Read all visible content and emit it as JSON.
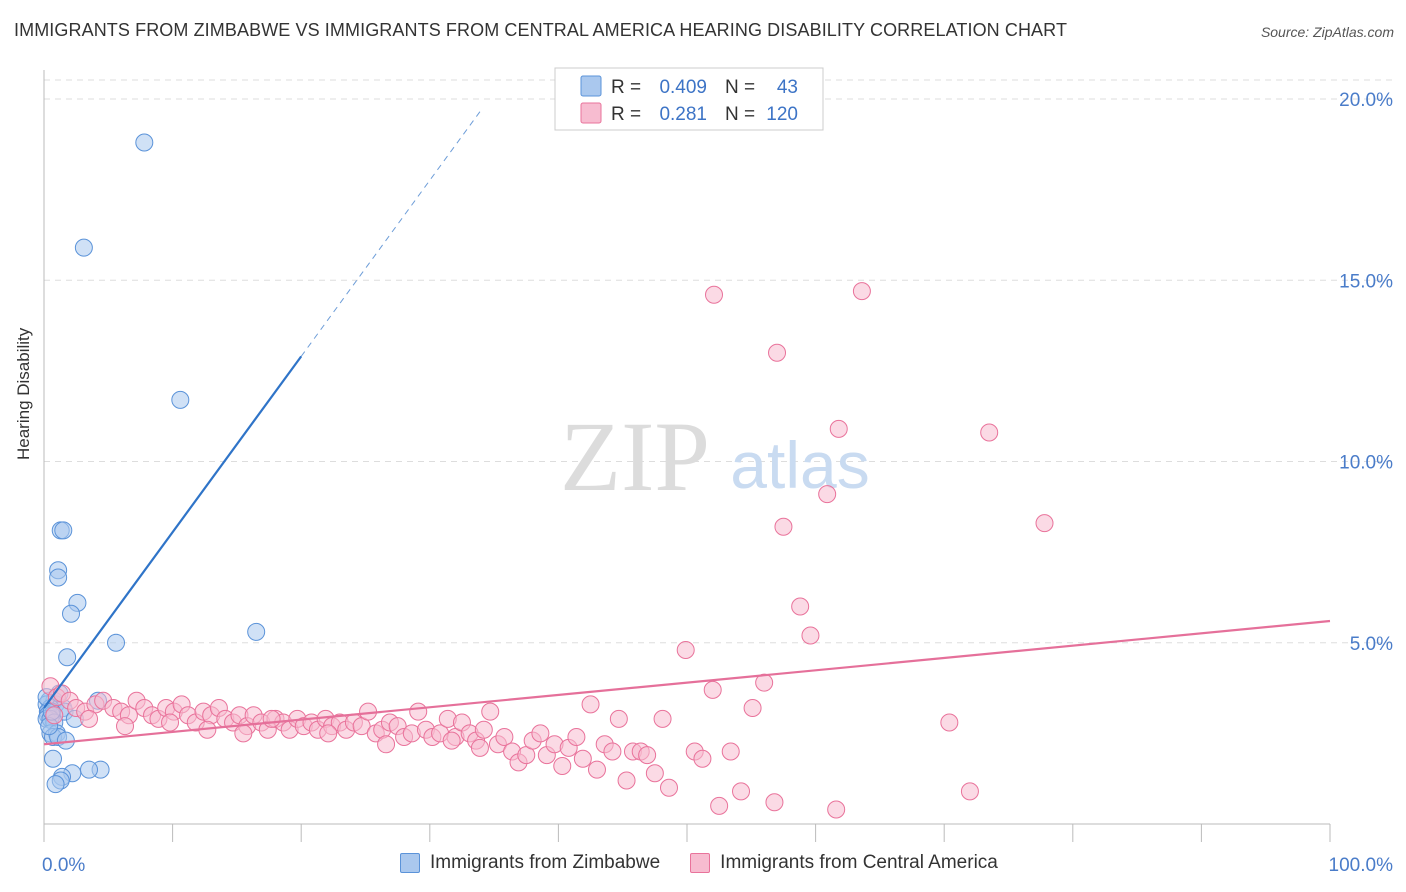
{
  "title": "IMMIGRANTS FROM ZIMBABWE VS IMMIGRANTS FROM CENTRAL AMERICA HEARING DISABILITY CORRELATION CHART",
  "source": "Source: ZipAtlas.com",
  "watermark": {
    "zip": "ZIP",
    "atlas": "atlas"
  },
  "colors": {
    "blue": "#5b93d9",
    "blue_fill": "#aac8ee",
    "blue_line": "#2f74c8",
    "pink": "#e9739b",
    "pink_fill": "#f7bcd0",
    "pink_line": "#e5709a",
    "axis_text": "#4a7cc9",
    "grid": "#dddddd"
  },
  "legend_box": [
    {
      "r_label": "R =",
      "r_value": "0.409",
      "n_label": "N =",
      "n_value": "43"
    },
    {
      "r_label": "R =",
      "r_value": "0.281",
      "n_label": "N =",
      "n_value": "120"
    }
  ],
  "chart_data": {
    "type": "scatter",
    "title": "IMMIGRANTS FROM ZIMBABWE VS IMMIGRANTS FROM CENTRAL AMERICA HEARING DISABILITY CORRELATION CHART",
    "xlabel": "",
    "ylabel": "Hearing Disability",
    "xlim": [
      0,
      100
    ],
    "ylim": [
      0,
      20.8
    ],
    "x_tick_labels": [
      {
        "value": 0,
        "label": "0.0%"
      },
      {
        "value": 100,
        "label": "100.0%"
      }
    ],
    "y_tick_labels": [
      {
        "value": 5,
        "label": "5.0%"
      },
      {
        "value": 10,
        "label": "10.0%"
      },
      {
        "value": 15,
        "label": "15.0%"
      },
      {
        "value": 20,
        "label": "20.0%"
      }
    ],
    "grid": true,
    "series": [
      {
        "name": "Immigrants from Zimbabwe",
        "color": "#5b93d9",
        "R": 0.409,
        "N": 43,
        "trend": {
          "x0": 0,
          "y0": 3.2,
          "x1": 20,
          "y1": 12.9,
          "dash_to_x": 34,
          "dash_to_y": 19.7
        },
        "points": [
          [
            7.8,
            18.8
          ],
          [
            3.1,
            15.9
          ],
          [
            10.6,
            11.7
          ],
          [
            1.3,
            8.1
          ],
          [
            1.5,
            8.1
          ],
          [
            1.1,
            7.0
          ],
          [
            1.1,
            6.8
          ],
          [
            2.6,
            6.1
          ],
          [
            2.1,
            5.8
          ],
          [
            5.6,
            5.0
          ],
          [
            16.5,
            5.3
          ],
          [
            1.8,
            4.6
          ],
          [
            4.2,
            3.4
          ],
          [
            0.4,
            3.4
          ],
          [
            0.8,
            3.4
          ],
          [
            0.2,
            3.3
          ],
          [
            0.9,
            3.3
          ],
          [
            1.5,
            3.2
          ],
          [
            0.5,
            3.2
          ],
          [
            0.3,
            3.1
          ],
          [
            1.6,
            3.1
          ],
          [
            0.3,
            3.0
          ],
          [
            0.6,
            3.0
          ],
          [
            2.4,
            2.9
          ],
          [
            0.2,
            2.9
          ],
          [
            0.5,
            2.9
          ],
          [
            0.8,
            2.8
          ],
          [
            0.5,
            2.5
          ],
          [
            1.0,
            2.5
          ],
          [
            0.7,
            2.4
          ],
          [
            1.1,
            2.4
          ],
          [
            1.7,
            2.3
          ],
          [
            0.7,
            1.8
          ],
          [
            4.4,
            1.5
          ],
          [
            3.5,
            1.5
          ],
          [
            2.2,
            1.4
          ],
          [
            1.4,
            1.3
          ],
          [
            1.3,
            1.2
          ],
          [
            0.9,
            1.1
          ],
          [
            0.2,
            3.5
          ],
          [
            0.4,
            2.7
          ],
          [
            1.2,
            3.6
          ],
          [
            0.6,
            3.1
          ]
        ]
      },
      {
        "name": "Immigrants from Central America",
        "color": "#e9739b",
        "R": 0.281,
        "N": 120,
        "trend": {
          "x0": 0,
          "y0": 2.2,
          "x1": 100,
          "y1": 5.6
        },
        "points": [
          [
            0.5,
            3.8
          ],
          [
            1.0,
            3.5
          ],
          [
            1.4,
            3.6
          ],
          [
            2.0,
            3.4
          ],
          [
            2.5,
            3.2
          ],
          [
            0.8,
            3.0
          ],
          [
            3.2,
            3.1
          ],
          [
            4.0,
            3.3
          ],
          [
            4.6,
            3.4
          ],
          [
            5.4,
            3.2
          ],
          [
            6.0,
            3.1
          ],
          [
            6.6,
            3.0
          ],
          [
            7.2,
            3.4
          ],
          [
            7.8,
            3.2
          ],
          [
            8.4,
            3.0
          ],
          [
            8.9,
            2.9
          ],
          [
            9.5,
            3.2
          ],
          [
            10.1,
            3.1
          ],
          [
            10.7,
            3.3
          ],
          [
            11.2,
            3.0
          ],
          [
            11.8,
            2.8
          ],
          [
            12.4,
            3.1
          ],
          [
            13.0,
            3.0
          ],
          [
            13.6,
            3.2
          ],
          [
            14.1,
            2.9
          ],
          [
            14.7,
            2.8
          ],
          [
            15.2,
            3.0
          ],
          [
            15.8,
            2.7
          ],
          [
            16.3,
            3.0
          ],
          [
            16.9,
            2.8
          ],
          [
            17.4,
            2.6
          ],
          [
            18.0,
            2.9
          ],
          [
            18.6,
            2.8
          ],
          [
            19.1,
            2.6
          ],
          [
            19.7,
            2.9
          ],
          [
            20.2,
            2.7
          ],
          [
            20.8,
            2.8
          ],
          [
            21.3,
            2.6
          ],
          [
            21.9,
            2.9
          ],
          [
            22.4,
            2.7
          ],
          [
            23.0,
            2.8
          ],
          [
            23.5,
            2.6
          ],
          [
            24.1,
            2.8
          ],
          [
            24.7,
            2.7
          ],
          [
            25.2,
            3.1
          ],
          [
            25.8,
            2.5
          ],
          [
            26.3,
            2.6
          ],
          [
            26.9,
            2.8
          ],
          [
            27.5,
            2.7
          ],
          [
            28.0,
            2.4
          ],
          [
            28.6,
            2.5
          ],
          [
            29.1,
            3.1
          ],
          [
            29.7,
            2.6
          ],
          [
            30.2,
            2.4
          ],
          [
            30.8,
            2.5
          ],
          [
            31.4,
            2.9
          ],
          [
            32.0,
            2.4
          ],
          [
            32.5,
            2.8
          ],
          [
            33.1,
            2.5
          ],
          [
            33.6,
            2.3
          ],
          [
            34.2,
            2.6
          ],
          [
            34.7,
            3.1
          ],
          [
            35.3,
            2.2
          ],
          [
            35.8,
            2.4
          ],
          [
            36.4,
            2.0
          ],
          [
            36.9,
            1.7
          ],
          [
            37.5,
            1.9
          ],
          [
            38.0,
            2.3
          ],
          [
            38.6,
            2.5
          ],
          [
            39.1,
            1.9
          ],
          [
            39.7,
            2.2
          ],
          [
            40.3,
            1.6
          ],
          [
            40.8,
            2.1
          ],
          [
            41.4,
            2.4
          ],
          [
            41.9,
            1.8
          ],
          [
            42.5,
            3.3
          ],
          [
            43.0,
            1.5
          ],
          [
            43.6,
            2.2
          ],
          [
            44.2,
            2.0
          ],
          [
            44.7,
            2.9
          ],
          [
            45.3,
            1.2
          ],
          [
            45.8,
            2.0
          ],
          [
            46.4,
            2.0
          ],
          [
            46.9,
            1.9
          ],
          [
            47.5,
            1.4
          ],
          [
            48.1,
            2.9
          ],
          [
            48.6,
            1.0
          ],
          [
            49.9,
            4.8
          ],
          [
            50.6,
            2.0
          ],
          [
            51.2,
            1.8
          ],
          [
            52.0,
            3.7
          ],
          [
            52.5,
            0.5
          ],
          [
            53.4,
            2.0
          ],
          [
            54.2,
            0.9
          ],
          [
            55.1,
            3.2
          ],
          [
            56.0,
            3.9
          ],
          [
            56.8,
            0.6
          ],
          [
            57.5,
            8.2
          ],
          [
            58.8,
            6.0
          ],
          [
            59.6,
            5.2
          ],
          [
            60.9,
            9.1
          ],
          [
            61.6,
            0.4
          ],
          [
            61.8,
            10.9
          ],
          [
            63.6,
            14.7
          ],
          [
            73.5,
            10.8
          ],
          [
            77.8,
            8.3
          ],
          [
            70.4,
            2.8
          ],
          [
            52.1,
            14.6
          ],
          [
            57.0,
            13.0
          ],
          [
            72.0,
            0.9
          ],
          [
            3.5,
            2.9
          ],
          [
            6.3,
            2.7
          ],
          [
            9.8,
            2.8
          ],
          [
            12.7,
            2.6
          ],
          [
            15.5,
            2.5
          ],
          [
            17.7,
            2.9
          ],
          [
            22.1,
            2.5
          ],
          [
            26.6,
            2.2
          ],
          [
            31.7,
            2.3
          ],
          [
            33.9,
            2.1
          ]
        ]
      }
    ]
  },
  "legend_bottom": [
    {
      "label": "Immigrants from Zimbabwe"
    },
    {
      "label": "Immigrants from Central America"
    }
  ]
}
